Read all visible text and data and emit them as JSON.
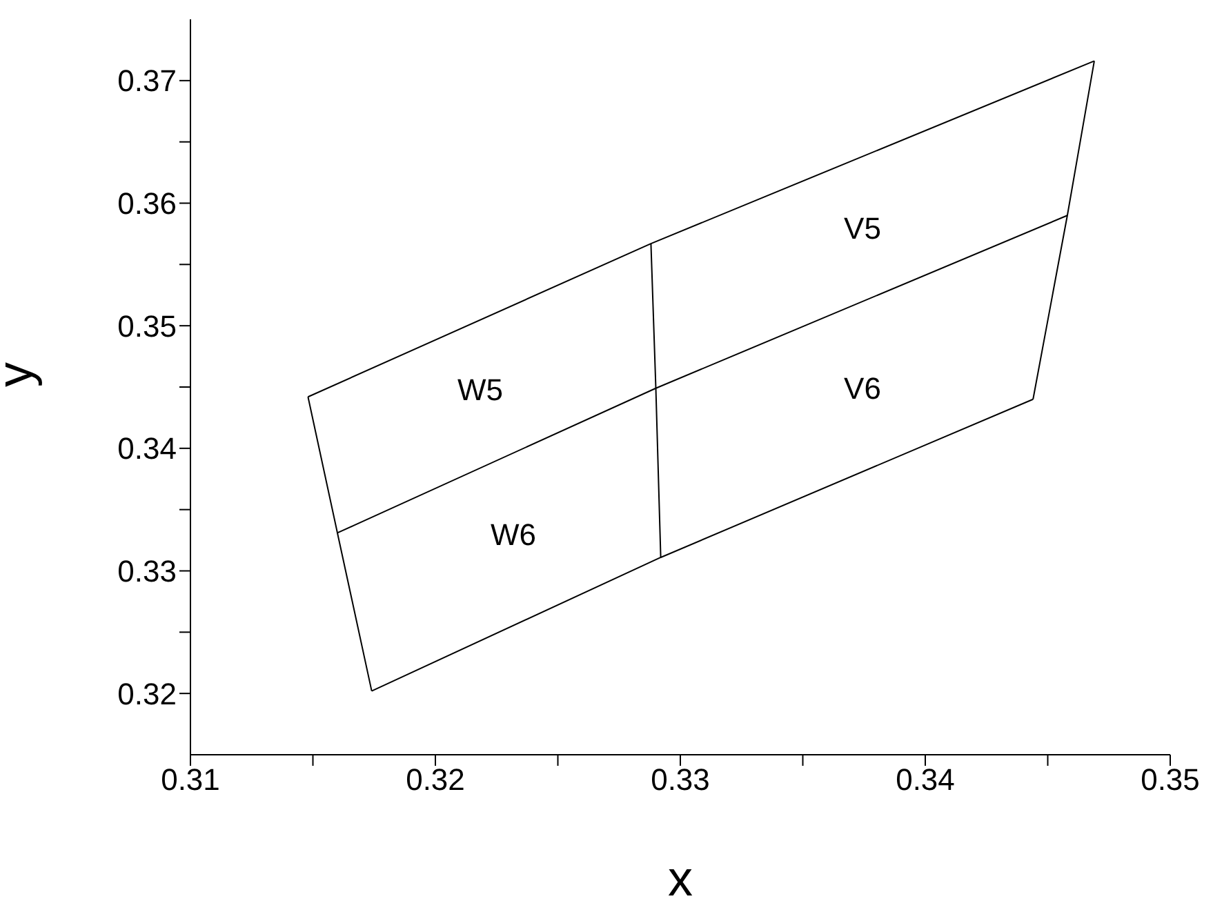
{
  "chart_data": {
    "type": "line",
    "xlabel": "x",
    "ylabel": "y",
    "xlim": [
      0.31,
      0.35
    ],
    "ylim": [
      0.315,
      0.375
    ],
    "xticks": [
      0.31,
      {
        "value": 0.315,
        "label": null
      },
      0.32,
      {
        "value": 0.325,
        "label": null
      },
      0.33,
      {
        "value": 0.335,
        "label": null
      },
      0.34,
      {
        "value": 0.345,
        "label": null
      },
      0.35
    ],
    "yticks": [
      0.32,
      {
        "value": 0.325,
        "label": null
      },
      0.33,
      {
        "value": 0.335,
        "label": null
      },
      0.34,
      {
        "value": 0.345,
        "label": null
      },
      0.35,
      {
        "value": 0.355,
        "label": null
      },
      0.36,
      {
        "value": 0.365,
        "label": null
      },
      0.37
    ],
    "grid": false,
    "marker": "none",
    "line_style": "solid",
    "series": [
      {
        "color": "#000000",
        "x": [
          0.3148,
          0.3288,
          0.3469
        ],
        "values": [
          0.3442,
          0.3567,
          0.3716
        ]
      },
      {
        "color": "#000000",
        "x": [
          0.316,
          0.329,
          0.3458
        ],
        "values": [
          0.3331,
          0.3449,
          0.359
        ]
      },
      {
        "color": "#000000",
        "x": [
          0.3174,
          0.3292,
          0.3444
        ],
        "values": [
          0.3202,
          0.3311,
          0.344
        ]
      },
      {
        "color": "#000000",
        "x": [
          0.3148,
          0.316,
          0.3174
        ],
        "values": [
          0.3442,
          0.3331,
          0.3202
        ]
      },
      {
        "color": "#000000",
        "x": [
          0.3444,
          0.3458,
          0.3469
        ],
        "values": [
          0.344,
          0.359,
          0.3716
        ]
      },
      {
        "color": "#000000",
        "x": [
          0.3288,
          0.329,
          0.3292
        ],
        "values": [
          0.3567,
          0.3449,
          0.3311
        ]
      }
    ],
    "annotations": [
      "W5",
      "V5",
      "V6",
      "W6"
    ]
  }
}
